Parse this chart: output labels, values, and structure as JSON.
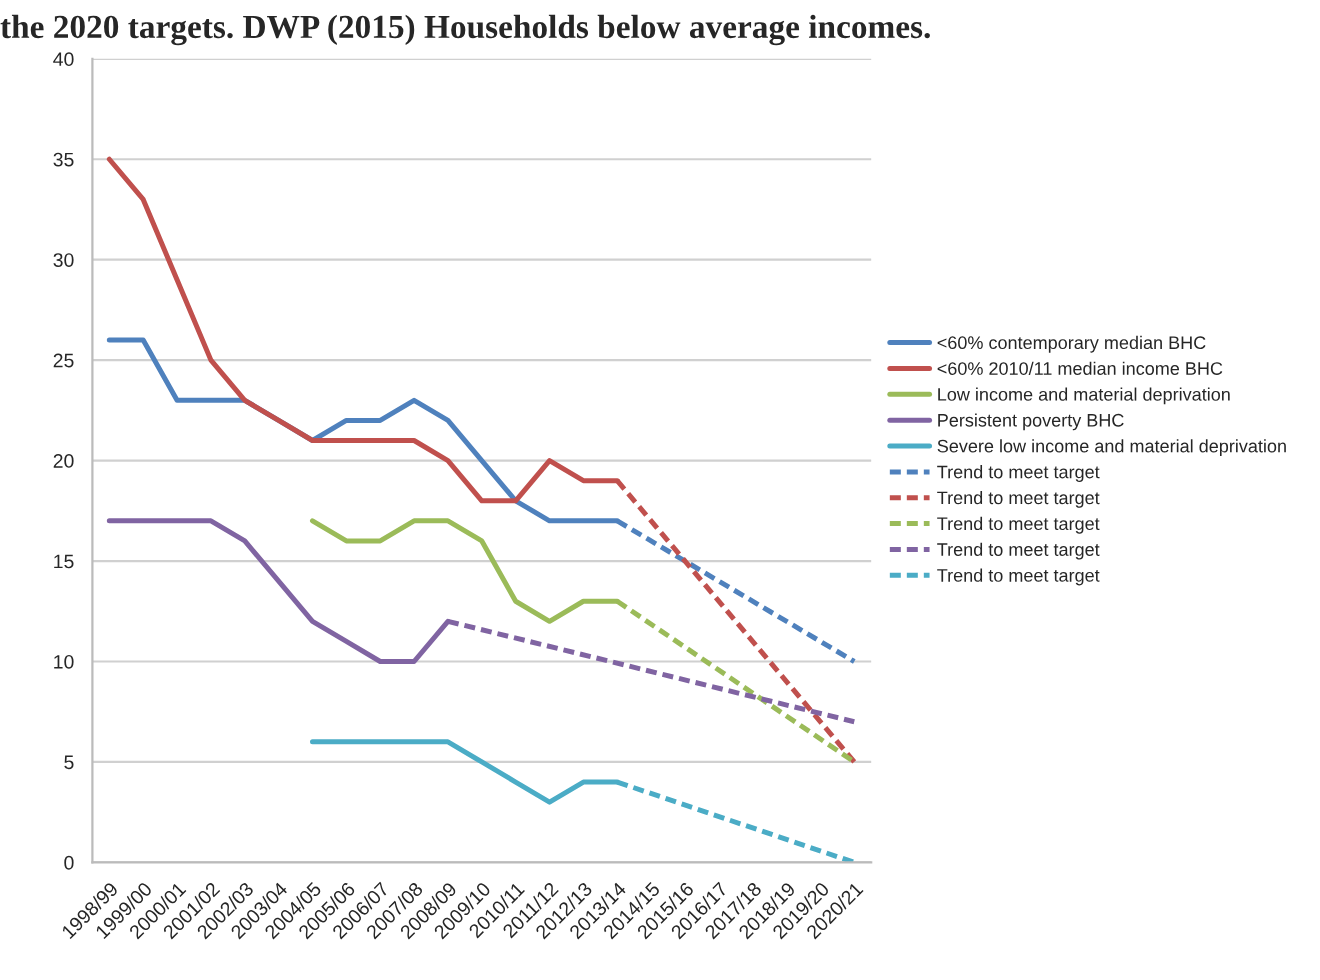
{
  "chart_data": {
    "type": "line",
    "title": "the 2020 targets. DWP (2015) Households below average incomes.",
    "categories": [
      "1998/99",
      "1999/00",
      "2000/01",
      "2001/02",
      "2002/03",
      "2003/04",
      "2004/05",
      "2005/06",
      "2006/07",
      "2007/08",
      "2008/09",
      "2009/10",
      "2010/11",
      "2011/12",
      "2012/13",
      "2013/14",
      "2014/15",
      "2015/16",
      "2016/17",
      "2017/18",
      "2018/19",
      "2019/20",
      "2020/21"
    ],
    "series": [
      {
        "name": "<60% contemporary median BHC",
        "color": "#4f81bd",
        "line_style": "solid",
        "values": [
          26,
          26,
          23,
          23,
          23,
          22,
          21,
          22,
          22,
          23,
          22,
          20,
          18,
          17,
          17,
          17,
          null,
          null,
          null,
          null,
          null,
          null,
          null
        ]
      },
      {
        "name": "<60% 2010/11 median income BHC",
        "color": "#c0504d",
        "line_style": "solid",
        "values": [
          35,
          33,
          29,
          25,
          23,
          22,
          21,
          21,
          21,
          21,
          20,
          18,
          18,
          20,
          19,
          19,
          null,
          null,
          null,
          null,
          null,
          null,
          null
        ]
      },
      {
        "name": "Low income and material deprivation",
        "color": "#9bbb59",
        "line_style": "solid",
        "values": [
          null,
          null,
          null,
          null,
          null,
          null,
          17,
          16,
          16,
          17,
          17,
          16,
          13,
          12,
          13,
          13,
          null,
          null,
          null,
          null,
          null,
          null,
          null
        ]
      },
      {
        "name": "Persistent poverty BHC",
        "color": "#8064a2",
        "line_style": "solid",
        "values": [
          17,
          17,
          17,
          17,
          16,
          14,
          12,
          11,
          10,
          10,
          12,
          null,
          null,
          null,
          null,
          null,
          null,
          null,
          null,
          null,
          null,
          null,
          null
        ]
      },
      {
        "name": "Severe low income and material deprivation",
        "color": "#4bacc6",
        "line_style": "solid",
        "values": [
          null,
          null,
          null,
          null,
          null,
          null,
          6,
          6,
          6,
          6,
          6,
          5,
          4,
          3,
          4,
          4,
          null,
          null,
          null,
          null,
          null,
          null,
          null
        ]
      },
      {
        "name": "Trend to meet target",
        "color": "#4f81bd",
        "line_style": "dashed",
        "values": [
          null,
          null,
          null,
          null,
          null,
          null,
          null,
          null,
          null,
          null,
          null,
          null,
          null,
          null,
          null,
          17,
          null,
          null,
          null,
          null,
          null,
          null,
          10
        ]
      },
      {
        "name": "Trend to meet target",
        "color": "#c0504d",
        "line_style": "dashed",
        "values": [
          null,
          null,
          null,
          null,
          null,
          null,
          null,
          null,
          null,
          null,
          null,
          null,
          null,
          null,
          null,
          19,
          null,
          null,
          null,
          null,
          null,
          null,
          5
        ]
      },
      {
        "name": "Trend to meet target",
        "color": "#9bbb59",
        "line_style": "dashed",
        "values": [
          null,
          null,
          null,
          null,
          null,
          null,
          null,
          null,
          null,
          null,
          null,
          null,
          null,
          null,
          null,
          13,
          null,
          null,
          null,
          null,
          null,
          null,
          5
        ]
      },
      {
        "name": "Trend to meet target",
        "color": "#8064a2",
        "line_style": "dashed",
        "values": [
          null,
          null,
          null,
          null,
          null,
          null,
          null,
          null,
          null,
          null,
          12,
          null,
          null,
          null,
          null,
          null,
          null,
          null,
          null,
          null,
          null,
          null,
          7
        ]
      },
      {
        "name": "Trend to meet target",
        "color": "#4bacc6",
        "line_style": "dashed",
        "values": [
          null,
          null,
          null,
          null,
          null,
          null,
          null,
          null,
          null,
          null,
          null,
          null,
          null,
          null,
          null,
          4,
          null,
          null,
          null,
          null,
          null,
          null,
          0
        ]
      }
    ],
    "ylim": [
      0,
      40
    ],
    "yticks": [
      0,
      5,
      10,
      15,
      20,
      25,
      30,
      35,
      40
    ],
    "grid": "y",
    "legend": "right",
    "marker": "none"
  }
}
